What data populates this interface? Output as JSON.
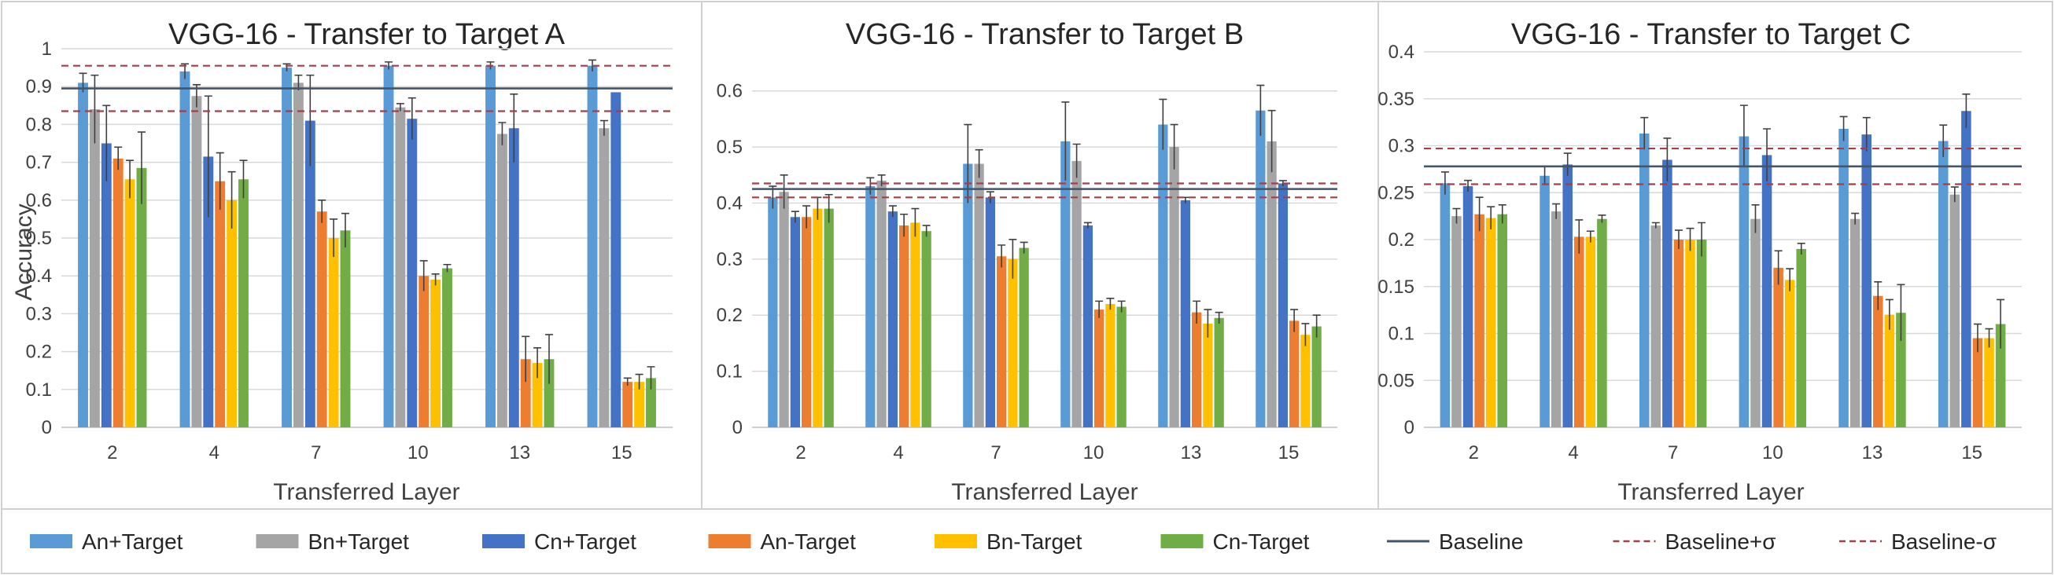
{
  "colors": {
    "An+Target": "#5b9bd5",
    "Bn+Target": "#a5a5a5",
    "Cn+Target": "#4472c4",
    "An-Target": "#ed7d31",
    "Bn-Target": "#ffc000",
    "Cn-Target": "#70ad47",
    "baseline": "#44546a",
    "baseline_sigma": "#a0404a"
  },
  "legend": [
    {
      "label": "An+Target",
      "kind": "bar",
      "color_key": "An+Target"
    },
    {
      "label": "Bn+Target",
      "kind": "bar",
      "color_key": "Bn+Target"
    },
    {
      "label": "Cn+Target",
      "kind": "bar",
      "color_key": "Cn+Target"
    },
    {
      "label": "An-Target",
      "kind": "bar",
      "color_key": "An-Target"
    },
    {
      "label": "Bn-Target",
      "kind": "bar",
      "color_key": "Bn-Target"
    },
    {
      "label": "Cn-Target",
      "kind": "bar",
      "color_key": "Cn-Target"
    },
    {
      "label": "Baseline",
      "kind": "solid",
      "color_key": "baseline"
    },
    {
      "label": "Baseline+σ",
      "kind": "dashed",
      "color_key": "baseline_sigma"
    },
    {
      "label": "Baseline-σ",
      "kind": "dashed",
      "color_key": "baseline_sigma"
    }
  ],
  "chart_data": [
    {
      "type": "bar",
      "title": "VGG-16 - Transfer to Target A",
      "xlabel": "Transferred Layer",
      "ylabel": "Accuracy",
      "categories": [
        "2",
        "4",
        "7",
        "10",
        "13",
        "15"
      ],
      "ylim": [
        0,
        1
      ],
      "yticks": [
        0,
        0.1,
        0.2,
        0.3,
        0.4,
        0.5,
        0.6,
        0.7,
        0.8,
        0.9,
        1
      ],
      "ytick_labels": [
        "0",
        "0.1",
        "0.2",
        "0.3",
        "0.4",
        "0.5",
        "0.6",
        "0.7",
        "0.8",
        "0.9",
        "1"
      ],
      "grid": true,
      "baseline": 0.895,
      "baseline_plus_sigma": 0.955,
      "baseline_minus_sigma": 0.835,
      "series": [
        {
          "name": "An+Target",
          "values": [
            0.91,
            0.94,
            0.95,
            0.955,
            0.955,
            0.955
          ],
          "errors": [
            0.025,
            0.02,
            0.01,
            0.01,
            0.01,
            0.015
          ]
        },
        {
          "name": "Bn+Target",
          "values": [
            0.84,
            0.875,
            0.91,
            0.845,
            0.775,
            0.79
          ],
          "errors": [
            0.09,
            0.03,
            0.02,
            0.01,
            0.03,
            0.02
          ]
        },
        {
          "name": "Cn+Target",
          "values": [
            0.75,
            0.715,
            0.81,
            0.815,
            0.79,
            0.885
          ],
          "errors": [
            0.1,
            0.16,
            0.12,
            0.055,
            0.09,
            0.0
          ]
        },
        {
          "name": "An-Target",
          "values": [
            0.71,
            0.65,
            0.57,
            0.4,
            0.18,
            0.12
          ],
          "errors": [
            0.03,
            0.075,
            0.03,
            0.04,
            0.06,
            0.01
          ]
        },
        {
          "name": "Bn-Target",
          "values": [
            0.655,
            0.6,
            0.5,
            0.39,
            0.17,
            0.12
          ],
          "errors": [
            0.05,
            0.075,
            0.05,
            0.015,
            0.04,
            0.02
          ]
        },
        {
          "name": "Cn-Target",
          "values": [
            0.685,
            0.655,
            0.52,
            0.42,
            0.18,
            0.13
          ],
          "errors": [
            0.095,
            0.05,
            0.045,
            0.01,
            0.065,
            0.03
          ]
        }
      ]
    },
    {
      "type": "bar",
      "title": "VGG-16 - Transfer to Target B",
      "xlabel": "Transferred Layer",
      "ylabel": "",
      "categories": [
        "2",
        "4",
        "7",
        "10",
        "13",
        "15"
      ],
      "ylim": [
        0,
        0.65
      ],
      "yticks": [
        0,
        0.1,
        0.2,
        0.3,
        0.4,
        0.5,
        0.6
      ],
      "ytick_labels": [
        "0",
        "0.1",
        "0.2",
        "0.3",
        "0.4",
        "0.5",
        "0.6"
      ],
      "grid": true,
      "baseline": 0.425,
      "baseline_plus_sigma": 0.435,
      "baseline_minus_sigma": 0.41,
      "series": [
        {
          "name": "An+Target",
          "values": [
            0.41,
            0.43,
            0.47,
            0.51,
            0.54,
            0.565
          ],
          "errors": [
            0.02,
            0.015,
            0.07,
            0.07,
            0.045,
            0.045
          ]
        },
        {
          "name": "Bn+Target",
          "values": [
            0.42,
            0.44,
            0.47,
            0.475,
            0.5,
            0.51
          ],
          "errors": [
            0.03,
            0.01,
            0.025,
            0.03,
            0.04,
            0.055
          ]
        },
        {
          "name": "Cn+Target",
          "values": [
            0.375,
            0.385,
            0.41,
            0.36,
            0.405,
            0.435
          ],
          "errors": [
            0.01,
            0.01,
            0.01,
            0.005,
            0.005,
            0.005
          ]
        },
        {
          "name": "An-Target",
          "values": [
            0.375,
            0.36,
            0.305,
            0.21,
            0.205,
            0.19
          ],
          "errors": [
            0.02,
            0.02,
            0.02,
            0.015,
            0.02,
            0.02
          ]
        },
        {
          "name": "Bn-Target",
          "values": [
            0.39,
            0.365,
            0.3,
            0.22,
            0.185,
            0.165
          ],
          "errors": [
            0.02,
            0.025,
            0.035,
            0.01,
            0.025,
            0.02
          ]
        },
        {
          "name": "Cn-Target",
          "values": [
            0.39,
            0.35,
            0.32,
            0.215,
            0.195,
            0.18
          ],
          "errors": [
            0.025,
            0.01,
            0.01,
            0.01,
            0.01,
            0.02
          ]
        }
      ]
    },
    {
      "type": "bar",
      "title": "VGG-16 - Transfer to Target C",
      "xlabel": "Transferred Layer",
      "ylabel": "",
      "categories": [
        "2",
        "4",
        "7",
        "10",
        "13",
        "15"
      ],
      "ylim": [
        0,
        0.4
      ],
      "yticks": [
        0,
        0.05,
        0.1,
        0.15,
        0.2,
        0.25,
        0.3,
        0.35,
        0.4
      ],
      "ytick_labels": [
        "0",
        "0.05",
        "0.1",
        "0.15",
        "0.2",
        "0.25",
        "0.3",
        "0.35",
        "0.4"
      ],
      "grid": true,
      "baseline": 0.278,
      "baseline_plus_sigma": 0.297,
      "baseline_minus_sigma": 0.259,
      "series": [
        {
          "name": "An+Target",
          "values": [
            0.26,
            0.268,
            0.313,
            0.31,
            0.318,
            0.305
          ],
          "errors": [
            0.012,
            0.01,
            0.017,
            0.033,
            0.013,
            0.017
          ]
        },
        {
          "name": "Bn+Target",
          "values": [
            0.225,
            0.23,
            0.215,
            0.222,
            0.222,
            0.248
          ],
          "errors": [
            0.008,
            0.008,
            0.003,
            0.015,
            0.006,
            0.008
          ]
        },
        {
          "name": "Cn+Target",
          "values": [
            0.257,
            0.28,
            0.285,
            0.29,
            0.312,
            0.337
          ],
          "errors": [
            0.006,
            0.012,
            0.023,
            0.028,
            0.018,
            0.018
          ]
        },
        {
          "name": "An-Target",
          "values": [
            0.227,
            0.203,
            0.2,
            0.17,
            0.14,
            0.095
          ],
          "errors": [
            0.018,
            0.018,
            0.01,
            0.018,
            0.015,
            0.015
          ]
        },
        {
          "name": "Bn-Target",
          "values": [
            0.223,
            0.203,
            0.2,
            0.157,
            0.12,
            0.095
          ],
          "errors": [
            0.012,
            0.006,
            0.012,
            0.012,
            0.016,
            0.01
          ]
        },
        {
          "name": "Cn-Target",
          "values": [
            0.227,
            0.222,
            0.2,
            0.19,
            0.122,
            0.11
          ],
          "errors": [
            0.01,
            0.004,
            0.018,
            0.006,
            0.03,
            0.026
          ]
        }
      ]
    }
  ]
}
